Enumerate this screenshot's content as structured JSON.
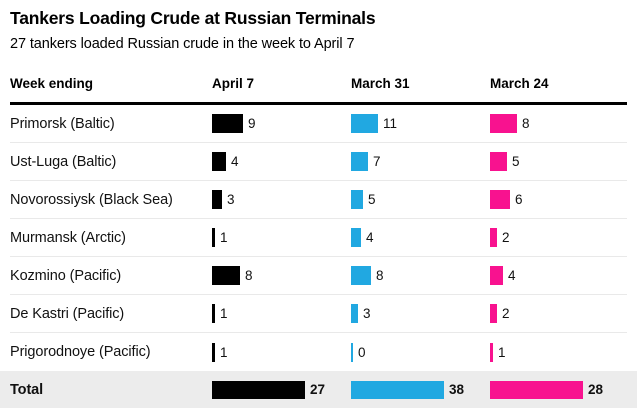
{
  "header": {
    "title": "Tankers Loading Crude at Russian Terminals",
    "subtitle": "27 tankers loaded Russian crude in the week to April 7"
  },
  "table": {
    "label_header": "Week ending",
    "columns": [
      {
        "label": "April 7",
        "color": "#000000"
      },
      {
        "label": "March 31",
        "color": "#21a8e1"
      },
      {
        "label": "March 24",
        "color": "#f8128f"
      }
    ],
    "rows": [
      {
        "terminal": "Primorsk (Baltic)",
        "values": [
          9,
          11,
          8
        ]
      },
      {
        "terminal": "Ust-Luga (Baltic)",
        "values": [
          4,
          7,
          5
        ]
      },
      {
        "terminal": "Novorossiysk (Black Sea)",
        "values": [
          3,
          5,
          6
        ]
      },
      {
        "terminal": "Murmansk (Arctic)",
        "values": [
          1,
          4,
          2
        ]
      },
      {
        "terminal": "Kozmino (Pacific)",
        "values": [
          8,
          8,
          4
        ]
      },
      {
        "terminal": "De Kastri (Pacific)",
        "values": [
          1,
          3,
          2
        ]
      },
      {
        "terminal": "Prigorodnoye (Pacific)",
        "values": [
          1,
          0,
          1
        ]
      }
    ],
    "total": {
      "label": "Total",
      "values": [
        27,
        38,
        28
      ]
    }
  },
  "chart_data": {
    "type": "bar",
    "orientation": "horizontal",
    "title": "Tankers Loading Crude at Russian Terminals",
    "subtitle": "27 tankers loaded Russian crude in the week to April 7",
    "categories": [
      "Primorsk (Baltic)",
      "Ust-Luga (Baltic)",
      "Novorossiysk (Black Sea)",
      "Murmansk (Arctic)",
      "Kozmino (Pacific)",
      "De Kastri (Pacific)",
      "Prigorodnoye (Pacific)",
      "Total"
    ],
    "series": [
      {
        "name": "April 7",
        "color": "#000000",
        "values": [
          9,
          4,
          3,
          1,
          8,
          1,
          1,
          27
        ]
      },
      {
        "name": "March 31",
        "color": "#21a8e1",
        "values": [
          11,
          7,
          5,
          4,
          8,
          3,
          0,
          38
        ]
      },
      {
        "name": "March 24",
        "color": "#f8128f",
        "values": [
          8,
          5,
          6,
          2,
          4,
          2,
          1,
          28
        ]
      }
    ],
    "value_labels": true,
    "grid": false,
    "legend_position": "column-headers",
    "scaling_note": "each column's bars are proportional to value/column-total; all total bars render equal width"
  }
}
